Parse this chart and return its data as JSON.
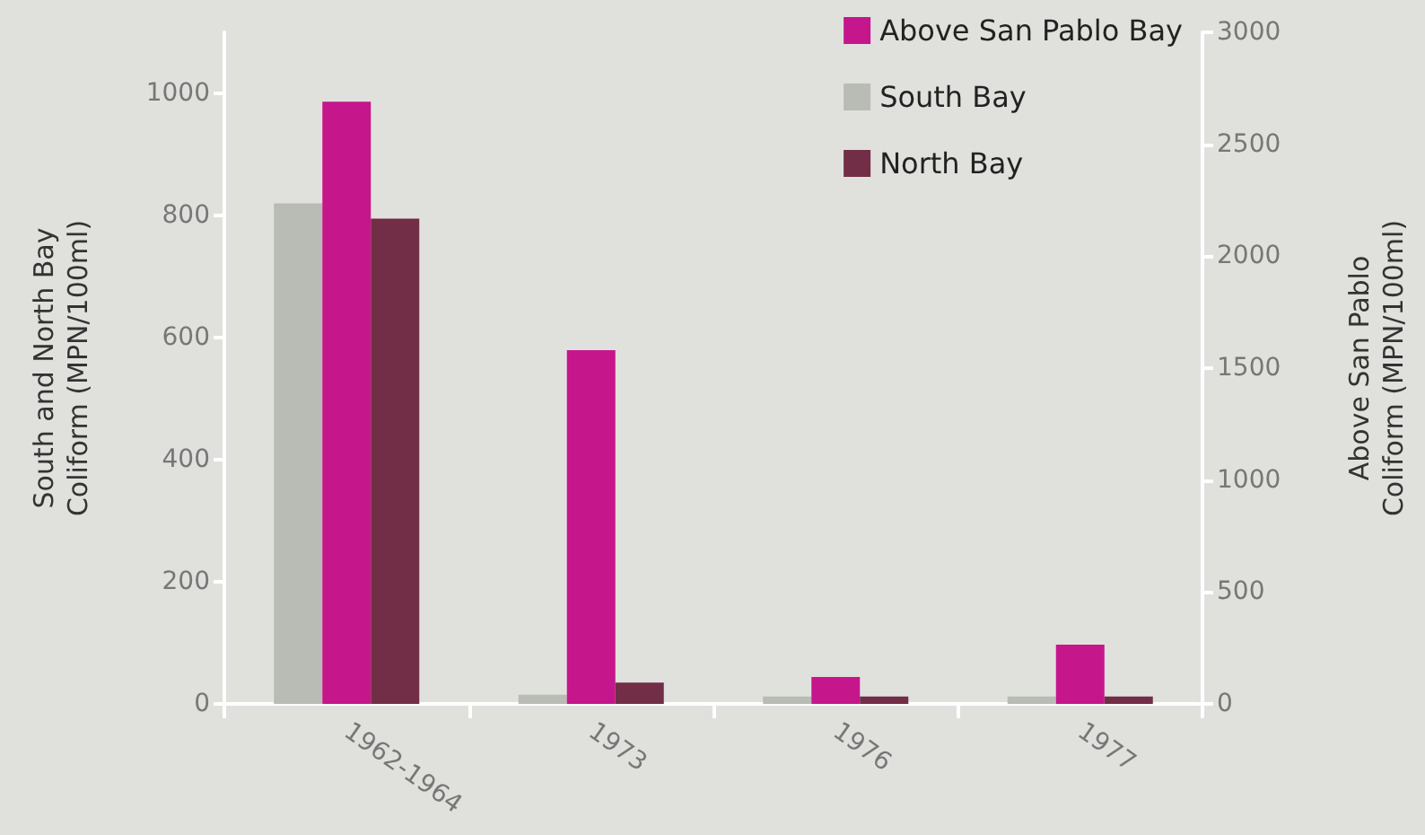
{
  "chart_data": {
    "type": "bar",
    "ylabel": "South and North Bay\nColiform (MPN/100ml)",
    "y2label": "Above San Pablo\nColiform (MPN/100ml)",
    "categories": [
      "1962-1964",
      "1973",
      "1976",
      "1977"
    ],
    "series": [
      {
        "name": "South Bay",
        "color": "#b9bbb5",
        "values": [
          820,
          15,
          12,
          12
        ]
      },
      {
        "name": "Above San Pablo Bay",
        "color": "#c5168c",
        "values": [
          2690,
          1580,
          120,
          265
        ],
        "axis": "y2"
      },
      {
        "name": "North Bay",
        "color": "#722d47",
        "values": [
          795,
          35,
          12,
          12
        ]
      }
    ],
    "ylim": [
      0,
      1100
    ],
    "yticks": [
      0,
      200,
      400,
      600,
      800,
      1000
    ],
    "y2lim": [
      0,
      3000
    ],
    "y2ticks": [
      0,
      500,
      1000,
      1500,
      2000,
      2500,
      3000
    ],
    "grid": false,
    "legend": "top right"
  }
}
